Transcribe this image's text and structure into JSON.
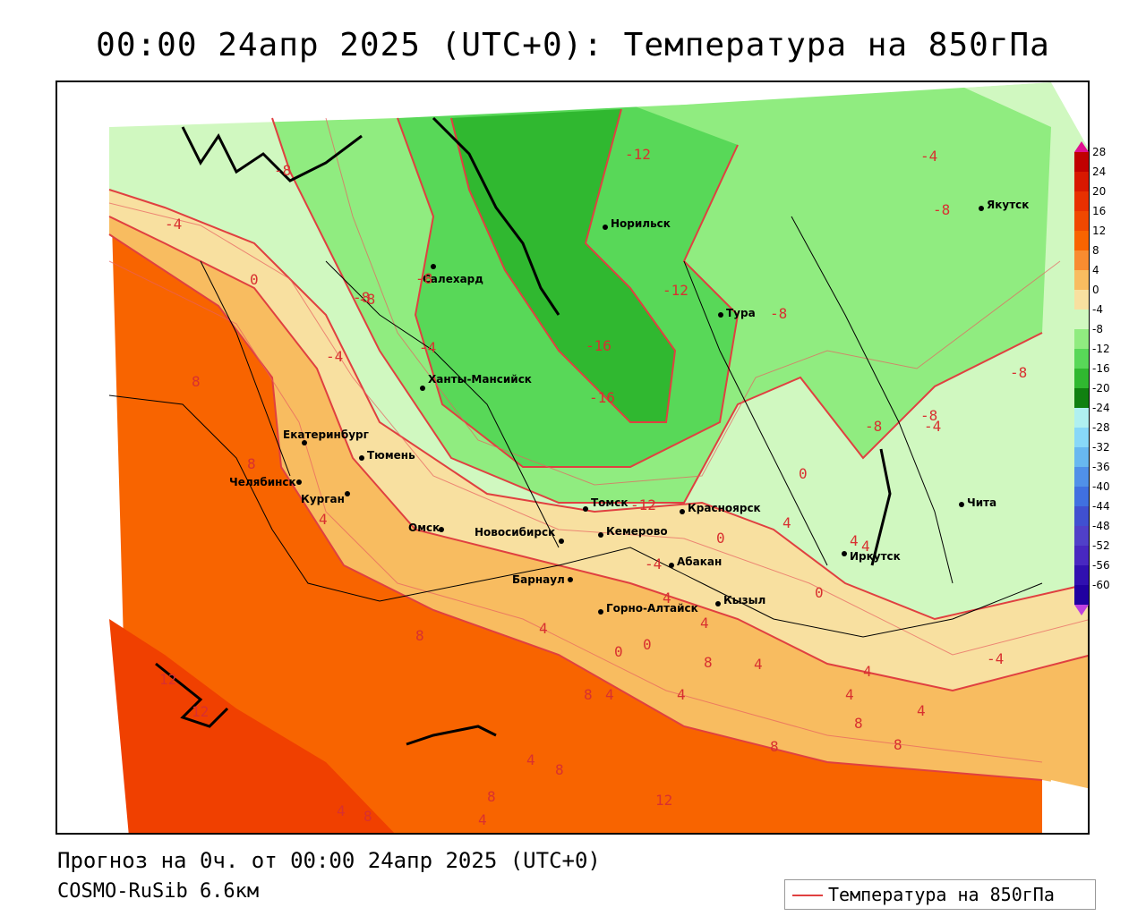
{
  "title": "00:00 24апр 2025 (UTC+0): Температура на 850гПа",
  "footer": {
    "forecast": "Прогноз на 0ч. от 00:00 24апр 2025 (UTC+0)",
    "model": "COSMO-RuSib 6.6км"
  },
  "legend": {
    "line_label": "Температура на 850гПа",
    "line_color": "#e04040"
  },
  "colorbar": {
    "labels": [
      "28",
      "24",
      "20",
      "16",
      "12",
      "8",
      "4",
      "0",
      "-4",
      "-8",
      "-12",
      "-16",
      "-20",
      "-24",
      "-28",
      "-32",
      "-36",
      "-40",
      "-44",
      "-48",
      "-52",
      "-56",
      "-60"
    ],
    "colors": [
      "#c00000",
      "#d81800",
      "#e83000",
      "#f04800",
      "#f86400",
      "#f88c30",
      "#f8bc60",
      "#f8e0a0",
      "#d0f8c0",
      "#90ec80",
      "#58d858",
      "#30b830",
      "#108010",
      "#b0f0f0",
      "#88d8f8",
      "#68b8f0",
      "#5090e8",
      "#4070e0",
      "#4050d0",
      "#5040c8",
      "#4828c0",
      "#3010b0",
      "#2000a0"
    ]
  },
  "cities": [
    "Салехард",
    "Норильск",
    "Якутск",
    "Тура",
    "Ханты-Мансийск",
    "Екатеринбург",
    "Тюмень",
    "Челябинск",
    "Курган",
    "Омск",
    "Новосибирск",
    "Томск",
    "Красноярск",
    "Кемерово",
    "Абакан",
    "Барнаул",
    "Иркутск",
    "Горно-Алтайск",
    "Кызыл",
    "Чита"
  ],
  "contour_labels": [
    "-8",
    "-4",
    "-8",
    "-4",
    "-8",
    "-12",
    "-12",
    "-16",
    "-16",
    "-12",
    "-8",
    "-8",
    "-4",
    "-8",
    "-4",
    "-8",
    "-8",
    "-8",
    "8",
    "8",
    "4",
    "0",
    "4",
    "0",
    "-4",
    "4",
    "0",
    "4",
    "4",
    "8",
    "4",
    "0",
    "0",
    "4",
    "8",
    "4",
    "4",
    "4",
    "8",
    "4",
    "8",
    "12",
    "12",
    "4",
    "8",
    "8",
    "4",
    "8",
    "4",
    "12",
    "8",
    "8",
    "-4",
    "4",
    "4",
    "0",
    "-4"
  ]
}
